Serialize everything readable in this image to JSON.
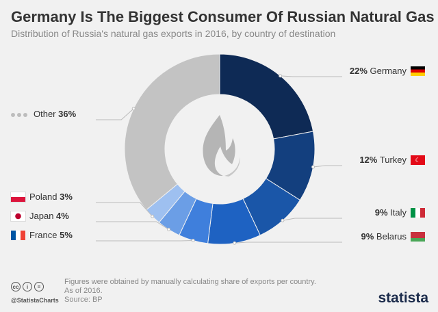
{
  "header": {
    "title": "Germany Is The Biggest Consumer Of Russian Natural Gas",
    "subtitle": "Distribution of Russia's natural gas exports in 2016, by country of destination"
  },
  "chart_data": {
    "type": "pie",
    "variant": "donut",
    "slices": [
      {
        "name": "Germany",
        "value": 22,
        "label": "22%",
        "color": "#0e2a55"
      },
      {
        "name": "Turkey",
        "value": 12,
        "label": "12%",
        "color": "#133f7e"
      },
      {
        "name": "Italy",
        "value": 9,
        "label": "9%",
        "color": "#1a56a8"
      },
      {
        "name": "Belarus",
        "value": 9,
        "label": "9%",
        "color": "#1e62c2"
      },
      {
        "name": "France",
        "value": 5,
        "label": "5%",
        "color": "#3f7fdc"
      },
      {
        "name": "Japan",
        "value": 4,
        "label": "4%",
        "color": "#6b9ee6"
      },
      {
        "name": "Poland",
        "value": 3,
        "label": "3%",
        "color": "#9ec0f0"
      },
      {
        "name": "Other",
        "value": 36,
        "label": "36%",
        "color": "#c3c3c3"
      }
    ]
  },
  "footer": {
    "note_line1": "Figures were obtained by manually calculating share of exports per country.",
    "note_line2": "As of 2016.",
    "source": "Source: BP",
    "handle": "@StatistaCharts",
    "brand": "statista",
    "cc_icons": [
      "cc",
      "i",
      "="
    ]
  }
}
